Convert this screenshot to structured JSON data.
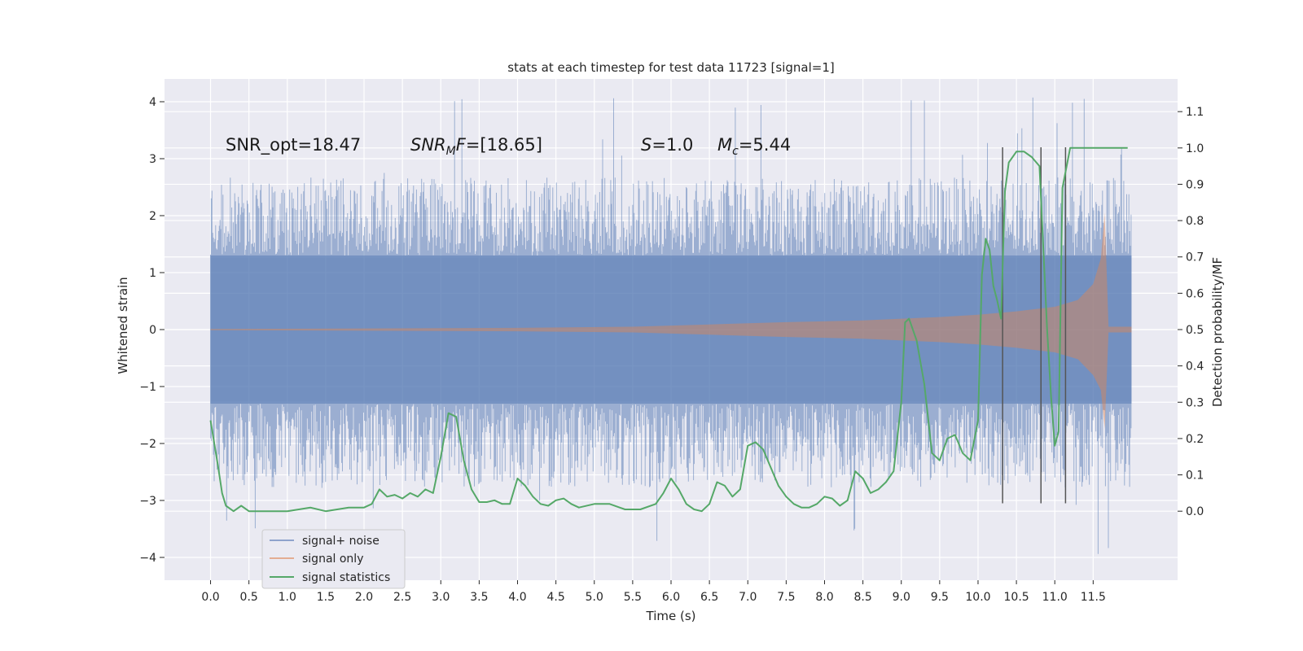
{
  "chart_data": {
    "type": "line",
    "title": "stats at each timestep for test data 11723 [signal=1]",
    "xlabel": "Time (s)",
    "ylabel": "Whitened strain",
    "y2label": "Detection probability/MF",
    "xlim": [
      -0.6,
      12.6
    ],
    "ylim": [
      -4.4,
      4.4
    ],
    "y2lim": [
      -0.19,
      1.19
    ],
    "xticks": [
      0.0,
      0.5,
      1.0,
      1.5,
      2.0,
      2.5,
      3.0,
      3.5,
      4.0,
      4.5,
      5.0,
      5.5,
      6.0,
      6.5,
      7.0,
      7.5,
      8.0,
      8.5,
      9.0,
      9.5,
      10.0,
      10.5,
      11.0,
      11.5
    ],
    "xtick_labels": [
      "0.0",
      "0.5",
      "1.0",
      "1.5",
      "2.0",
      "2.5",
      "3.0",
      "3.5",
      "4.0",
      "4.5",
      "5.0",
      "5.5",
      "6.0",
      "6.5",
      "7.0",
      "7.5",
      "8.0",
      "8.5",
      "9.0",
      "9.5",
      "10.0",
      "10.5",
      "11.0",
      "11.5"
    ],
    "yticks": [
      -4,
      -3,
      -2,
      -1,
      0,
      1,
      2,
      3,
      4
    ],
    "ytick_labels": [
      "−4",
      "−3",
      "−2",
      "−1",
      "0",
      "1",
      "2",
      "3",
      "4"
    ],
    "y2ticks": [
      0.0,
      0.1,
      0.2,
      0.3,
      0.4,
      0.5,
      0.6,
      0.7,
      0.8,
      0.9,
      1.0,
      1.1
    ],
    "y2tick_labels": [
      "0.0",
      "0.1",
      "0.2",
      "0.3",
      "0.4",
      "0.5",
      "0.6",
      "0.7",
      "0.8",
      "0.9",
      "1.0",
      "1.1"
    ],
    "noise": {
      "t_start": 0.0,
      "t_end": 12.0,
      "upper_band": 1.3,
      "lower_band": -1.3,
      "typical_peak": 2.4,
      "max_peak": 4.1,
      "min_trough": -4.0
    },
    "signal_envelope": {
      "t": [
        0.0,
        2.0,
        4.0,
        5.5,
        6.5,
        7.5,
        8.5,
        9.5,
        10.0,
        10.5,
        11.0,
        11.3,
        11.5,
        11.6,
        11.65,
        11.7,
        12.0
      ],
      "amp": [
        0.01,
        0.02,
        0.03,
        0.05,
        0.09,
        0.13,
        0.16,
        0.22,
        0.26,
        0.32,
        0.4,
        0.52,
        0.8,
        1.25,
        2.05,
        0.05,
        0.05
      ]
    },
    "stat_series": {
      "t": [
        0.0,
        0.1,
        0.15,
        0.2,
        0.3,
        0.4,
        0.5,
        0.7,
        1.0,
        1.3,
        1.5,
        1.8,
        2.0,
        2.1,
        2.2,
        2.3,
        2.4,
        2.5,
        2.6,
        2.7,
        2.8,
        2.9,
        3.0,
        3.1,
        3.2,
        3.3,
        3.4,
        3.5,
        3.6,
        3.7,
        3.8,
        3.9,
        4.0,
        4.1,
        4.2,
        4.3,
        4.4,
        4.5,
        4.6,
        4.7,
        4.8,
        5.0,
        5.2,
        5.4,
        5.6,
        5.8,
        5.9,
        6.0,
        6.1,
        6.2,
        6.3,
        6.4,
        6.5,
        6.6,
        6.7,
        6.8,
        6.9,
        7.0,
        7.1,
        7.2,
        7.3,
        7.4,
        7.5,
        7.6,
        7.7,
        7.8,
        7.9,
        8.0,
        8.1,
        8.2,
        8.3,
        8.4,
        8.5,
        8.6,
        8.7,
        8.8,
        8.9,
        9.0,
        9.05,
        9.1,
        9.2,
        9.3,
        9.4,
        9.5,
        9.6,
        9.7,
        9.8,
        9.9,
        10.0,
        10.05,
        10.1,
        10.15,
        10.2,
        10.25,
        10.3,
        10.35,
        10.4,
        10.5,
        10.6,
        10.7,
        10.8,
        10.9,
        10.95,
        11.0,
        11.05,
        11.1,
        11.2,
        11.3,
        11.5,
        11.7,
        11.95
      ],
      "values": [
        0.25,
        0.12,
        0.05,
        0.015,
        0.0,
        0.015,
        0.0,
        0.0,
        0.0,
        0.01,
        0.0,
        0.01,
        0.01,
        0.02,
        0.06,
        0.04,
        0.045,
        0.035,
        0.05,
        0.04,
        0.06,
        0.05,
        0.15,
        0.27,
        0.26,
        0.14,
        0.06,
        0.025,
        0.025,
        0.03,
        0.02,
        0.02,
        0.09,
        0.07,
        0.04,
        0.02,
        0.015,
        0.03,
        0.035,
        0.02,
        0.01,
        0.02,
        0.02,
        0.005,
        0.005,
        0.02,
        0.05,
        0.09,
        0.06,
        0.02,
        0.005,
        0.0,
        0.02,
        0.08,
        0.07,
        0.04,
        0.06,
        0.18,
        0.19,
        0.17,
        0.12,
        0.07,
        0.04,
        0.02,
        0.01,
        0.01,
        0.02,
        0.04,
        0.035,
        0.015,
        0.03,
        0.11,
        0.09,
        0.05,
        0.06,
        0.08,
        0.11,
        0.3,
        0.52,
        0.53,
        0.47,
        0.35,
        0.16,
        0.14,
        0.2,
        0.21,
        0.16,
        0.14,
        0.25,
        0.65,
        0.75,
        0.72,
        0.62,
        0.58,
        0.53,
        0.88,
        0.96,
        0.99,
        0.99,
        0.975,
        0.95,
        0.5,
        0.32,
        0.18,
        0.22,
        0.89,
        1.0,
        1.0,
        1.0,
        1.0,
        1.0
      ]
    },
    "vlines": [
      {
        "t": 10.32,
        "y_top": 3.2,
        "y_bottom": -3.05
      },
      {
        "t": 10.82,
        "y_top": 3.2,
        "y_bottom": -3.05
      },
      {
        "t": 11.14,
        "y_top": 3.2,
        "y_bottom": -3.05
      }
    ],
    "annotations": [
      {
        "text": "SNR_opt=18.47",
        "x": 0.2,
        "y": 3.3
      },
      {
        "text": "SNR_MF=[18.65]",
        "x": 2.6,
        "y": 3.3
      },
      {
        "text": "S=1.0",
        "x": 5.6,
        "y": 3.3
      },
      {
        "text": "M_c=5.44",
        "x": 6.6,
        "y": 3.3
      }
    ],
    "legend": {
      "location": "lower-left",
      "entries": [
        {
          "label": "signal+ noise",
          "color": "#8fa3cc"
        },
        {
          "label": "signal only",
          "color": "#dd8452"
        },
        {
          "label": "signal statistics",
          "color": "#55a868"
        }
      ]
    },
    "colors": {
      "noise": "#4c72b0",
      "signal": "#dd8452",
      "stat": "#55a868",
      "vline": "#555555",
      "background": "#eaeaf2",
      "grid": "#ffffff"
    }
  },
  "text": {
    "title": "stats at each timestep for test data 11723 [signal=1]",
    "xlabel": "Time (s)",
    "ylabel": "Whitened strain",
    "y2label": "Detection probability/MF",
    "snr_opt": "SNR_opt=18.47",
    "snr_mf_pre": "SNR",
    "snr_mf_sub": "M",
    "snr_mf_mid": "F",
    "snr_mf_val": "=[18.65]",
    "s_var": "S",
    "s_val": "=1.0",
    "mc_var": "M",
    "mc_sub": "c",
    "mc_val": "=5.44"
  }
}
